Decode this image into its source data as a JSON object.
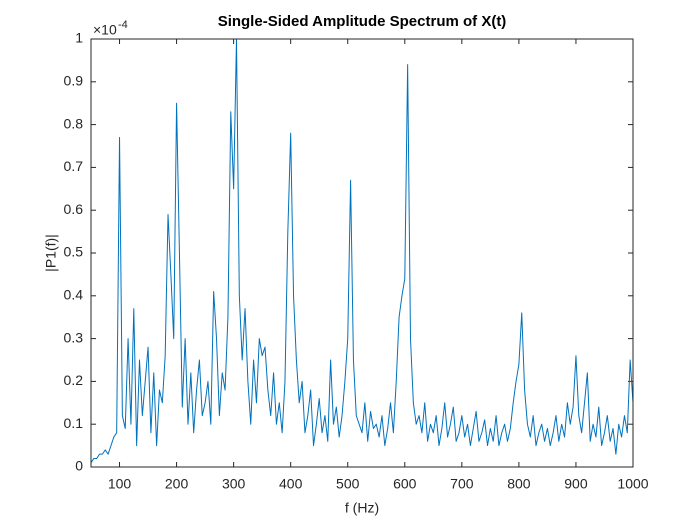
{
  "chart_data": {
    "type": "line",
    "title": "Single-Sided Amplitude Spectrum of X(t)",
    "x_label": "f (Hz)",
    "y_label": "|P1(f)|",
    "y_scale_base": "×10",
    "y_scale_exponent": "-4",
    "xlim": [
      50,
      1000
    ],
    "ylim": [
      0,
      1
    ],
    "xticks": [
      100,
      200,
      300,
      400,
      500,
      600,
      700,
      800,
      900,
      1000
    ],
    "yticks": [
      0,
      0.1,
      0.2,
      0.3,
      0.4,
      0.5,
      0.6,
      0.7,
      0.8,
      0.9,
      1
    ],
    "x": [
      50,
      55,
      60,
      65,
      70,
      75,
      80,
      85,
      90,
      95,
      100,
      105,
      110,
      115,
      120,
      125,
      130,
      135,
      140,
      145,
      150,
      155,
      160,
      165,
      170,
      175,
      180,
      185,
      190,
      195,
      200,
      205,
      210,
      215,
      220,
      225,
      230,
      235,
      240,
      245,
      250,
      255,
      260,
      265,
      270,
      275,
      280,
      285,
      290,
      295,
      300,
      305,
      310,
      315,
      320,
      325,
      330,
      335,
      340,
      345,
      350,
      355,
      360,
      365,
      370,
      375,
      380,
      385,
      390,
      395,
      400,
      405,
      410,
      415,
      420,
      425,
      430,
      435,
      440,
      445,
      450,
      455,
      460,
      465,
      470,
      475,
      480,
      485,
      490,
      495,
      500,
      505,
      510,
      515,
      520,
      525,
      530,
      535,
      540,
      545,
      550,
      555,
      560,
      565,
      570,
      575,
      580,
      585,
      590,
      595,
      600,
      605,
      610,
      615,
      620,
      625,
      630,
      635,
      640,
      645,
      650,
      655,
      660,
      665,
      670,
      675,
      680,
      685,
      690,
      695,
      700,
      705,
      710,
      715,
      720,
      725,
      730,
      735,
      740,
      745,
      750,
      755,
      760,
      765,
      770,
      775,
      780,
      785,
      790,
      795,
      800,
      805,
      810,
      815,
      820,
      825,
      830,
      835,
      840,
      845,
      850,
      855,
      860,
      865,
      870,
      875,
      880,
      885,
      890,
      895,
      900,
      905,
      910,
      915,
      920,
      925,
      930,
      935,
      940,
      945,
      950,
      955,
      960,
      965,
      970,
      975,
      980,
      985,
      990,
      995,
      1000
    ],
    "series": [
      {
        "color": "#0072bd",
        "values": [
          0.01,
          0.02,
          0.02,
          0.03,
          0.03,
          0.04,
          0.03,
          0.05,
          0.07,
          0.08,
          0.77,
          0.12,
          0.09,
          0.3,
          0.1,
          0.37,
          0.05,
          0.25,
          0.12,
          0.2,
          0.28,
          0.08,
          0.22,
          0.05,
          0.18,
          0.15,
          0.26,
          0.59,
          0.45,
          0.3,
          0.85,
          0.5,
          0.14,
          0.3,
          0.1,
          0.22,
          0.08,
          0.18,
          0.25,
          0.12,
          0.15,
          0.2,
          0.1,
          0.41,
          0.3,
          0.12,
          0.22,
          0.18,
          0.35,
          0.83,
          0.65,
          1.0,
          0.4,
          0.25,
          0.37,
          0.2,
          0.1,
          0.25,
          0.15,
          0.3,
          0.26,
          0.28,
          0.18,
          0.12,
          0.22,
          0.1,
          0.15,
          0.08,
          0.2,
          0.55,
          0.78,
          0.4,
          0.25,
          0.15,
          0.2,
          0.08,
          0.12,
          0.18,
          0.05,
          0.1,
          0.16,
          0.08,
          0.12,
          0.06,
          0.25,
          0.1,
          0.14,
          0.07,
          0.12,
          0.2,
          0.3,
          0.67,
          0.25,
          0.12,
          0.1,
          0.08,
          0.15,
          0.06,
          0.13,
          0.09,
          0.1,
          0.07,
          0.12,
          0.05,
          0.09,
          0.15,
          0.08,
          0.2,
          0.35,
          0.4,
          0.44,
          0.94,
          0.3,
          0.15,
          0.1,
          0.12,
          0.08,
          0.15,
          0.06,
          0.1,
          0.08,
          0.12,
          0.05,
          0.09,
          0.15,
          0.07,
          0.1,
          0.14,
          0.06,
          0.08,
          0.12,
          0.07,
          0.1,
          0.05,
          0.09,
          0.13,
          0.06,
          0.08,
          0.11,
          0.05,
          0.09,
          0.06,
          0.12,
          0.05,
          0.08,
          0.1,
          0.06,
          0.09,
          0.15,
          0.2,
          0.24,
          0.36,
          0.18,
          0.1,
          0.07,
          0.12,
          0.05,
          0.08,
          0.1,
          0.06,
          0.09,
          0.05,
          0.08,
          0.12,
          0.06,
          0.1,
          0.07,
          0.15,
          0.1,
          0.14,
          0.26,
          0.12,
          0.08,
          0.15,
          0.22,
          0.06,
          0.1,
          0.07,
          0.14,
          0.05,
          0.08,
          0.12,
          0.06,
          0.09,
          0.03,
          0.1,
          0.07,
          0.12,
          0.08,
          0.25,
          0.15
        ]
      }
    ],
    "grid": false
  }
}
